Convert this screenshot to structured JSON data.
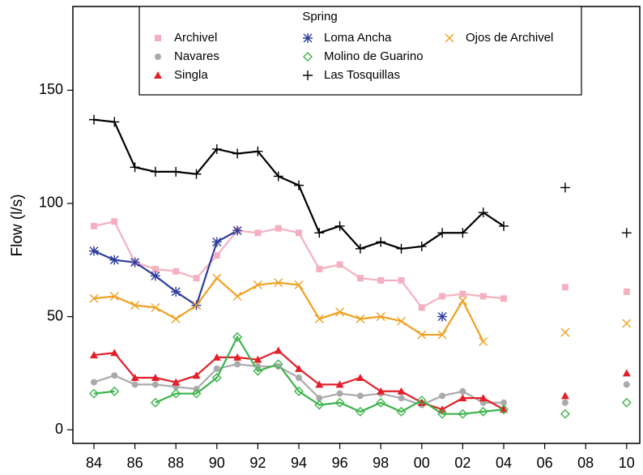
{
  "chart_data": {
    "type": "line",
    "y_label": "Flow (l/s)",
    "legend_title": "Spring",
    "legend": "top",
    "categories": [
      "84",
      null,
      "86",
      null,
      "88",
      null,
      "90",
      null,
      "92",
      null,
      "94",
      null,
      "96",
      null,
      "98",
      null,
      "00",
      null,
      "02",
      null,
      "04",
      null,
      "06",
      null,
      "08",
      null,
      "10"
    ],
    "ylim": [
      -6,
      187
    ],
    "yticks": [
      0,
      50,
      100,
      150
    ],
    "series": [
      {
        "name": "Archivel",
        "color": "#f4b0c0",
        "marker": "square",
        "values": [
          90,
          92,
          74,
          71,
          70,
          67,
          77,
          88,
          87,
          89,
          87,
          71,
          73,
          67,
          66,
          66,
          54,
          59,
          60,
          59,
          58,
          null,
          null,
          63,
          null,
          null,
          61
        ]
      },
      {
        "name": "Navares",
        "color": "#aaaaaa",
        "marker": "circle",
        "values": [
          21,
          24,
          20,
          20,
          19,
          18,
          27,
          29,
          28,
          28,
          23,
          14,
          16,
          15,
          16,
          14,
          11,
          15,
          17,
          12,
          12,
          null,
          null,
          12,
          null,
          null,
          20
        ]
      },
      {
        "name": "Singla",
        "color": "#e3202a",
        "marker": "triangle",
        "values": [
          33,
          34,
          23,
          23,
          21,
          24,
          32,
          32,
          31,
          35,
          27,
          20,
          20,
          23,
          17,
          17,
          12,
          9,
          14,
          14,
          9,
          null,
          null,
          15,
          null,
          null,
          25
        ]
      },
      {
        "name": "Loma Ancha",
        "color": "#2e3d9c",
        "marker": "asterisk",
        "values": [
          79,
          75,
          74,
          68,
          61,
          55,
          83,
          88,
          null,
          null,
          null,
          null,
          null,
          null,
          null,
          null,
          null,
          50,
          null,
          null,
          null,
          null,
          null,
          null,
          null,
          null,
          null
        ]
      },
      {
        "name": "Molino de Guarino",
        "color": "#3cb44b",
        "marker": "diamond",
        "values": [
          16,
          17,
          null,
          12,
          16,
          16,
          23,
          41,
          26,
          29,
          17,
          11,
          12,
          8,
          12,
          8,
          13,
          7,
          7,
          8,
          9,
          null,
          null,
          7,
          null,
          null,
          12
        ]
      },
      {
        "name": "Las Tosquillas",
        "color": "#000000",
        "marker": "plus",
        "values": [
          137,
          136,
          116,
          114,
          114,
          113,
          124,
          122,
          123,
          112,
          108,
          87,
          90,
          80,
          83,
          80,
          81,
          87,
          87,
          96,
          90,
          null,
          null,
          107,
          null,
          null,
          87
        ]
      },
      {
        "name": "Ojos de Archivel",
        "color": "#f0a020",
        "marker": "cross",
        "values": [
          58,
          59,
          55,
          54,
          49,
          55,
          67,
          59,
          64,
          65,
          64,
          49,
          52,
          49,
          50,
          48,
          42,
          42,
          57,
          39,
          null,
          null,
          null,
          43,
          null,
          null,
          47
        ]
      }
    ]
  }
}
